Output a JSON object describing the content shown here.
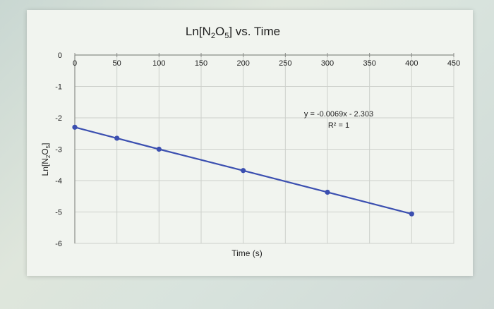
{
  "chart_data": {
    "type": "scatter",
    "title": "Ln[N2O5] vs. Time",
    "title_parts": {
      "pre": "Ln[N",
      "sub1": "2",
      "mid": "O",
      "sub2": "5",
      "post": "] vs. Time"
    },
    "xlabel": "Time (s)",
    "ylabel": "Ln[N2O5]",
    "ylabel_parts": {
      "pre": "Ln[N",
      "sub1": "2",
      "mid": "O",
      "sub2": "5",
      "post": "]"
    },
    "xlim": [
      0,
      450
    ],
    "ylim": [
      -6,
      0
    ],
    "x_ticks": [
      0,
      50,
      100,
      150,
      200,
      250,
      300,
      350,
      400,
      450
    ],
    "y_ticks": [
      0,
      -1,
      -2,
      -3,
      -4,
      -5,
      -6
    ],
    "grid": true,
    "legend": "none",
    "series": [
      {
        "x": [
          0,
          50,
          100,
          200,
          300,
          400
        ],
        "y": [
          -2.3,
          -2.65,
          -3.0,
          -3.68,
          -4.37,
          -5.06
        ],
        "color": "#3b4fb0"
      }
    ],
    "trendline": {
      "equation": "y = -0.0069x - 2.303",
      "r_squared": "R² = 1",
      "color": "#3b4fb0"
    }
  }
}
